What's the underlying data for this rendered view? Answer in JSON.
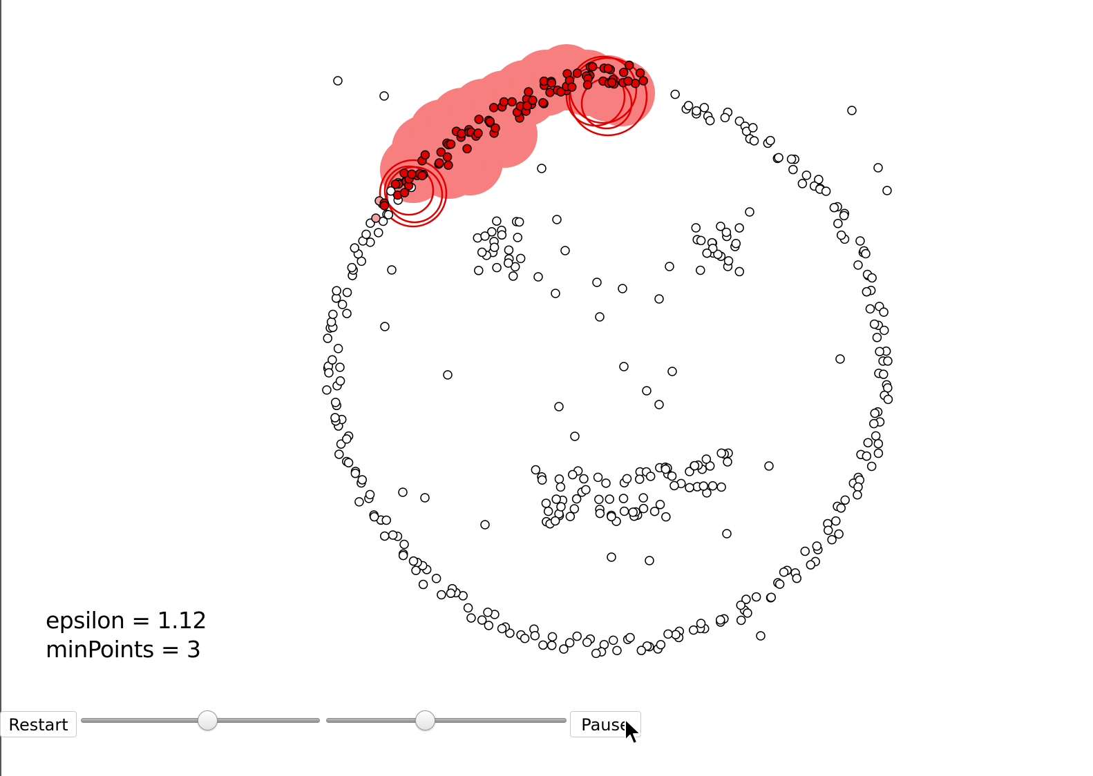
{
  "params": {
    "epsilon_text": "epsilon = 1.12",
    "minpoints_text": "minPoints = 3"
  },
  "controls": {
    "restart_label": "Restart",
    "pause_label": "Pause",
    "epsilon_slider": {
      "value_fraction": 0.53
    },
    "minpoints_slider": {
      "value_fraction": 0.41
    }
  },
  "colors": {
    "point_fill": "#ffffff",
    "point_stroke": "#000000",
    "cluster_point": "#e00000",
    "cluster_area": "#f87f7f",
    "active_ring": "#e00000",
    "candidate_point": "#f5a0a0"
  }
}
